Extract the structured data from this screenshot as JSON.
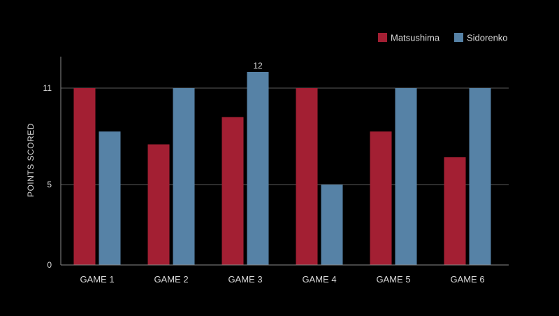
{
  "chart_data": {
    "type": "bar",
    "title": "",
    "xlabel": "",
    "ylabel": "POINTS SCORED",
    "ylim": [
      0,
      11.5
    ],
    "yticks": [
      0,
      5,
      11
    ],
    "grid": true,
    "legend_position": "top-right",
    "categories": [
      "GAME 1",
      "GAME 2",
      "GAME 3",
      "GAME 4",
      "GAME 5",
      "GAME 6"
    ],
    "series": [
      {
        "name": "Matsushima",
        "color": "#a31f33",
        "values": [
          11,
          7.5,
          9.2,
          11,
          8.3,
          6.7
        ]
      },
      {
        "name": "Sidorenko",
        "color": "#5682a6",
        "values": [
          8.3,
          11,
          12,
          5,
          11,
          11
        ]
      }
    ],
    "annotations": [
      {
        "series": 1,
        "category": 2,
        "text": "12"
      }
    ],
    "colors": {
      "background": "#000000",
      "text": "#d9d9d9",
      "grid": "#5a5a5a",
      "axis": "#8a8a8a"
    }
  }
}
